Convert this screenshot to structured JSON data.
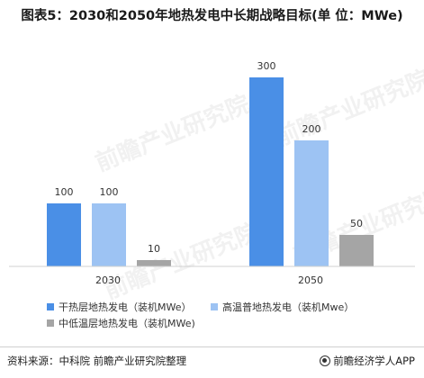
{
  "title": "图表5：2030和2050年地热发电中长期战略目标(单 位：MWe)",
  "source": "资料来源：中科院 前瞻产业研究院整理",
  "brand": "前瞻经济学人APP",
  "watermark": "前瞻产业研究院",
  "chart_data": {
    "type": "bar",
    "categories": [
      "2030",
      "2050"
    ],
    "series": [
      {
        "name": "干热层地热发电（装机MWe）",
        "color": "#4a8fe6",
        "values": [
          100,
          300
        ]
      },
      {
        "name": "高温普地热发电（装机Mwe）",
        "color": "#9dc3f3",
        "values": [
          100,
          200
        ]
      },
      {
        "name": "中低温层地热发电（装机MWe)",
        "color": "#a5a5a5",
        "values": [
          10,
          50
        ]
      }
    ],
    "data_labels": [
      [
        "100",
        "100",
        "10"
      ],
      [
        "300",
        "200",
        "50"
      ]
    ],
    "ylim": [
      0,
      300
    ],
    "grid": false,
    "legend_position": "bottom"
  }
}
